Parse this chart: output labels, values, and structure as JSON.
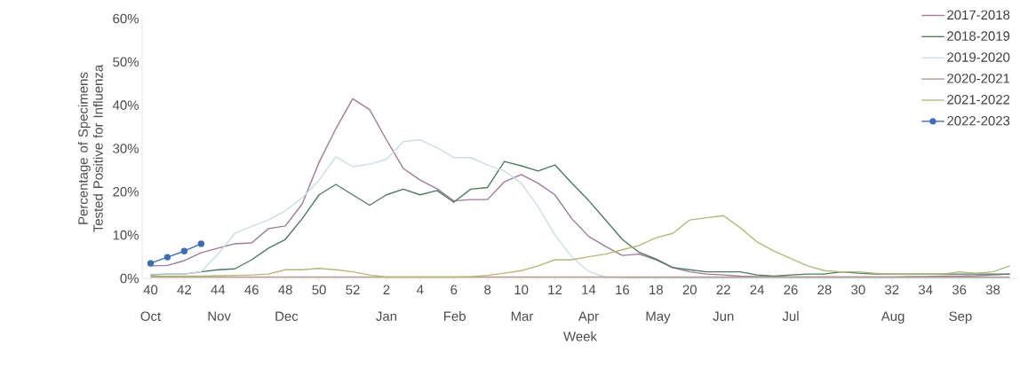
{
  "chart_data": {
    "type": "line",
    "xlabel": "Week",
    "ylabel": "Percentage of Specimens Tested Positive for Influenza",
    "categories": [
      "40 Oct",
      null,
      "42",
      null,
      "44 Nov",
      null,
      "46",
      null,
      "48 Dec",
      null,
      "50",
      null,
      "52",
      null,
      "2 Jan",
      null,
      "4",
      null,
      "6 Feb",
      null,
      "8",
      null,
      "10 Mar",
      null,
      "12",
      null,
      "14 Apr",
      null,
      "16",
      null,
      "18 May",
      null,
      "20",
      null,
      "22 Jun",
      null,
      "24",
      null,
      "26 Jul",
      null,
      "28",
      null,
      "30",
      null,
      "32 Aug",
      null,
      "34",
      null,
      "36 Sep",
      null,
      "38",
      null
    ],
    "ylim": [
      0,
      60
    ],
    "yticks": [
      {
        "value": 0,
        "label": "0%"
      },
      {
        "value": 10,
        "label": "10%"
      },
      {
        "value": 20,
        "label": "20%"
      },
      {
        "value": 30,
        "label": "30%"
      },
      {
        "value": 40,
        "label": "40%"
      },
      {
        "value": 50,
        "label": "50%"
      },
      {
        "value": 60,
        "label": "60%"
      }
    ],
    "legend": "top right",
    "line_style": "solid",
    "series": [
      {
        "name": "2017-2018",
        "color": "#a07a9a",
        "values": [
          2.9,
          3,
          4.1,
          5.9,
          7,
          8,
          8.2,
          11.5,
          12.1,
          17.2,
          26.8,
          34.6,
          41.5,
          39,
          32,
          25.4,
          22.7,
          20.7,
          17.9,
          18.2,
          18.2,
          22.3,
          24,
          22,
          19.3,
          13.8,
          9.7,
          7.4,
          5.3,
          5.6,
          4.3,
          2.5,
          1.5,
          1,
          0.8,
          0.5,
          0.4,
          0.4,
          0.3,
          0.3,
          0.3,
          0.3,
          0.3,
          0.3,
          0.3,
          0.4,
          0.4,
          0.5,
          0.5,
          0.6,
          0.8,
          1
        ]
      },
      {
        "name": "2018-2019",
        "color": "#4f7a62",
        "values": [
          0.8,
          1,
          1,
          1.5,
          2,
          2.2,
          4.3,
          7,
          9,
          13.8,
          19.3,
          21.7,
          19.3,
          16.9,
          19.3,
          20.6,
          19.3,
          20.3,
          17.6,
          20.6,
          21,
          27,
          26,
          24.8,
          26.2,
          22,
          18,
          13.5,
          9,
          6,
          4.5,
          2.5,
          2,
          1.5,
          1.5,
          1.5,
          0.8,
          0.5,
          0.8,
          1,
          1,
          1.5,
          1.2,
          1,
          1,
          1,
          1,
          1,
          1,
          1,
          1,
          1
        ]
      },
      {
        "name": "2019-2020",
        "color": "#c9dde8",
        "values": [
          1,
          1,
          1,
          1.6,
          5.6,
          10.4,
          12,
          13.5,
          15.6,
          18.6,
          22.7,
          28.1,
          25.8,
          26.4,
          27.5,
          31.6,
          32,
          30.2,
          27.9,
          27.9,
          26.2,
          24.8,
          22,
          16.6,
          10,
          5,
          1.6,
          0.3,
          0.2,
          0.1,
          0.1,
          0.1,
          0.1,
          0.1,
          0.1,
          0.1,
          0.1,
          0.1,
          0.1,
          0.1,
          0.1,
          0.1,
          0.1,
          0.1,
          0.1,
          0.1,
          0.1,
          0.1,
          0.1,
          0.1,
          0.1,
          0.1
        ]
      },
      {
        "name": "2020-2021",
        "color": "#b49a8a",
        "values": [
          0.3,
          0.3,
          0.3,
          0.3,
          0.3,
          0.3,
          0.3,
          0.3,
          0.3,
          0.3,
          0.3,
          0.3,
          0.3,
          0.3,
          0.3,
          0.3,
          0.3,
          0.3,
          0.3,
          0.3,
          0.3,
          0.3,
          0.3,
          0.3,
          0.3,
          0.3,
          0.3,
          0.3,
          0.3,
          0.3,
          0.3,
          0.3,
          0.3,
          0.3,
          0.3,
          0.3,
          0.3,
          0.3,
          0.3,
          0.3,
          0.3,
          0.3,
          0.3,
          0.3,
          0.3,
          0.3,
          0.3,
          0.3,
          0.3,
          0.3,
          0.3,
          0.3
        ]
      },
      {
        "name": "2021-2022",
        "color": "#b5b878",
        "values": [
          0.5,
          0.5,
          0.5,
          0.5,
          0.6,
          0.7,
          0.8,
          1,
          2,
          2,
          2.3,
          2,
          1.5,
          0.8,
          0.3,
          0.3,
          0.3,
          0.3,
          0.3,
          0.4,
          0.7,
          1.2,
          1.8,
          2.9,
          4.3,
          4.3,
          5,
          5.6,
          6.6,
          7.6,
          9.4,
          10.4,
          13.5,
          14,
          14.5,
          11.7,
          8.4,
          6.3,
          4.6,
          2.9,
          1.8,
          1.5,
          1.5,
          1.2,
          1,
          1,
          1,
          1,
          1.5,
          1.2,
          1.5,
          2.9
        ]
      },
      {
        "name": "2022-2023",
        "color": "#3d6db3",
        "marker": "circle",
        "values": [
          3.5,
          4.9,
          6.3,
          8,
          null,
          null,
          null,
          null,
          null,
          null,
          null,
          null,
          null,
          null,
          null,
          null,
          null,
          null,
          null,
          null,
          null,
          null,
          null,
          null,
          null,
          null,
          null,
          null,
          null,
          null,
          null,
          null,
          null,
          null,
          null,
          null,
          null,
          null,
          null,
          null,
          null,
          null,
          null,
          null,
          null,
          null,
          null,
          null,
          null,
          null,
          null,
          null
        ]
      }
    ]
  }
}
